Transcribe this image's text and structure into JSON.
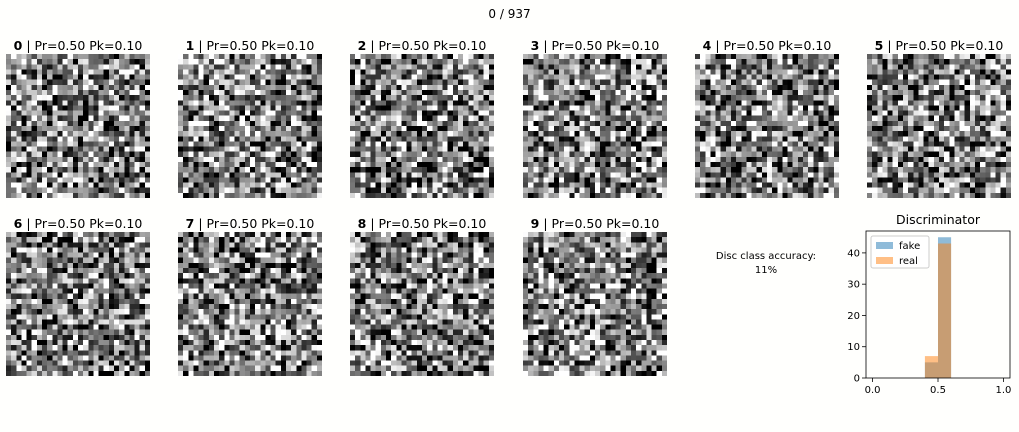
{
  "header": {
    "progress_text": "0 / 937"
  },
  "panels": [
    {
      "id": "0",
      "stats": " | Pr=0.50 Pk=0.10"
    },
    {
      "id": "1",
      "stats": " | Pr=0.50 Pk=0.10"
    },
    {
      "id": "2",
      "stats": " | Pr=0.50 Pk=0.10"
    },
    {
      "id": "3",
      "stats": " | Pr=0.50 Pk=0.10"
    },
    {
      "id": "4",
      "stats": " | Pr=0.50 Pk=0.10"
    },
    {
      "id": "5",
      "stats": " | Pr=0.50 Pk=0.10"
    },
    {
      "id": "6",
      "stats": " | Pr=0.50 Pk=0.10"
    },
    {
      "id": "7",
      "stats": " | Pr=0.50 Pk=0.10"
    },
    {
      "id": "8",
      "stats": " | Pr=0.50 Pk=0.10"
    },
    {
      "id": "9",
      "stats": " | Pr=0.50 Pk=0.10"
    }
  ],
  "accuracy": {
    "label": "Disc class accuracy:",
    "value": "11%"
  },
  "chart_data": {
    "type": "bar",
    "title": "Discriminator",
    "xlim": [
      0,
      1
    ],
    "ylim": [
      0,
      47
    ],
    "xticks": [
      "0.0",
      "0.5",
      "1.0"
    ],
    "yticks": [
      "0",
      "10",
      "20",
      "30",
      "40"
    ],
    "legend": "upper-left",
    "bin_edges": [
      0.4,
      0.5,
      0.6
    ],
    "series": [
      {
        "name": "fake",
        "color": "#1f77b4",
        "values": [
          5,
          45
        ]
      },
      {
        "name": "real",
        "color": "#ff7f0e",
        "values": [
          7,
          43
        ]
      }
    ]
  }
}
